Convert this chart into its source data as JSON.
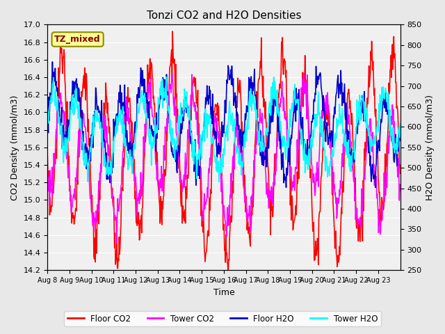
{
  "title": "Tonzi CO2 and H2O Densities",
  "xlabel": "Time",
  "ylabel_left": "CO2 Density (mmol/m3)",
  "ylabel_right": "H2O Density (mmol/m3)",
  "ylim_left": [
    14.2,
    17.0
  ],
  "ylim_right": [
    250,
    850
  ],
  "yticks_left": [
    14.2,
    14.4,
    14.6,
    14.8,
    15.0,
    15.2,
    15.4,
    15.6,
    15.8,
    16.0,
    16.2,
    16.4,
    16.6,
    16.8,
    17.0
  ],
  "yticks_right": [
    250,
    300,
    350,
    400,
    450,
    500,
    550,
    600,
    650,
    700,
    750,
    800,
    850
  ],
  "xtick_labels": [
    "Aug 8",
    "Aug 9",
    "Aug 10",
    "Aug 11",
    "Aug 12",
    "Aug 13",
    "Aug 14",
    "Aug 15",
    "Aug 16",
    "Aug 17",
    "Aug 18",
    "Aug 19",
    "Aug 20",
    "Aug 21",
    "Aug 22",
    "Aug 23"
  ],
  "n_days": 16,
  "colors": {
    "floor_co2": "#FF0000",
    "tower_co2": "#FF00FF",
    "floor_h2o": "#0000CD",
    "tower_h2o": "#00FFFF"
  },
  "annotation_text": "TZ_mixed",
  "annotation_color": "#8B0000",
  "annotation_bg": "#FFFF99",
  "annotation_border": "#8B8B00",
  "background_color": "#E8E8E8",
  "plot_bg": "#F0F0F0",
  "grid_color": "#FFFFFF",
  "legend_entries": [
    "Floor CO2",
    "Tower CO2",
    "Floor H2O",
    "Tower H2O"
  ],
  "h2o_min": 250,
  "h2o_max": 850,
  "co2_min": 14.2,
  "co2_max": 17.0
}
